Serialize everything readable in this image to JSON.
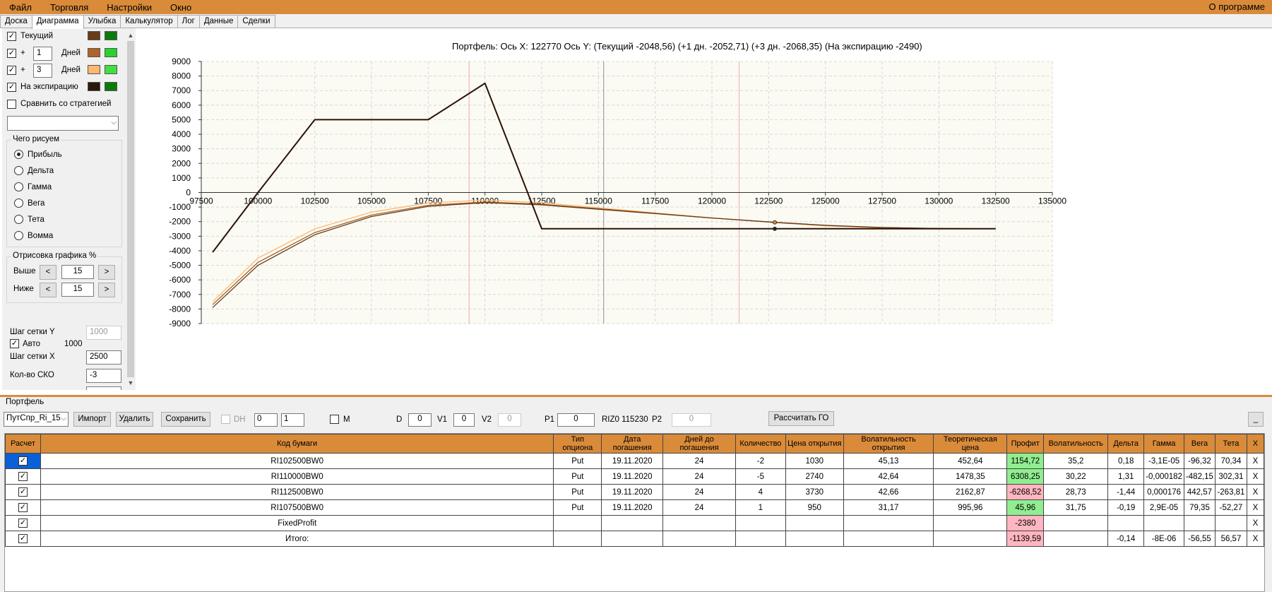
{
  "menu": {
    "items": [
      "Файл",
      "Торговля",
      "Настройки",
      "Окно"
    ],
    "about": "О программе"
  },
  "tabs": [
    "Доска",
    "Диаграмма",
    "Улыбка",
    "Калькулятор",
    "Лог",
    "Данные",
    "Сделки"
  ],
  "active_tab": "Диаграмма",
  "left": {
    "current_label": "Текущий",
    "plus": "+",
    "days_label": "Дней",
    "days1": "1",
    "days3": "3",
    "expiry_label": "На экспирацию",
    "compare_label": "Сравнить со стратегией",
    "what_group": "Чего рисуем",
    "radios": [
      "Прибыль",
      "Дельта",
      "Гамма",
      "Вега",
      "Тета",
      "Вомма"
    ],
    "draw_group": "Отрисовка графика %",
    "above_label": "Выше",
    "below_label": "Ниже",
    "above_val": "15",
    "below_val": "15",
    "btn_less": "<",
    "btn_more": ">",
    "grid_y_label": "Шаг сетки Y",
    "grid_y_val": "1000",
    "auto_label": "Авто",
    "auto_val": "1000",
    "grid_x_label": "Шаг сетки X",
    "grid_x_val": "2500",
    "sko_label": "Кол-во СКО",
    "sko_val": "-3",
    "colors": {
      "current": [
        "#6b3a1a",
        "#0a7a0a"
      ],
      "d1": [
        "#b0642c",
        "#2bd22b"
      ],
      "d3": [
        "#ffb870",
        "#40e040"
      ],
      "expiry": [
        "#2a1a0a",
        "#0a7a0a"
      ]
    }
  },
  "chart_title": "Портфель:  Ось X:  122770  Ось Y:   (Текущий -2048,56)   (+1 дн. -2052,71)   (+3 дн. -2068,35)   (На экспирацию -2490)",
  "chart_data": {
    "type": "line",
    "xlim": [
      97500,
      135000
    ],
    "ylim": [
      -9000,
      9000
    ],
    "xticks": [
      "97500",
      "100000",
      "102500",
      "105000",
      "107500",
      "110000",
      "112500",
      "115000",
      "117500",
      "120000",
      "122500",
      "125000",
      "127500",
      "130000",
      "132500",
      "135000"
    ],
    "yticks": [
      "9000",
      "8000",
      "7000",
      "6000",
      "5000",
      "4000",
      "3000",
      "2000",
      "1000",
      "0",
      "-1000",
      "-2000",
      "-3000",
      "-4000",
      "-5000",
      "-6000",
      "-7000",
      "-8000",
      "-9000"
    ],
    "vlines": [
      {
        "x": 109300,
        "color": "#f4b4b4"
      },
      {
        "x": 115230,
        "color": "#9aa0a8"
      },
      {
        "x": 121200,
        "color": "#f4b4b4"
      }
    ],
    "series": [
      {
        "key": "expiry",
        "color": "#2a1205",
        "width": 2,
        "points": [
          [
            98000,
            -4100
          ],
          [
            100000,
            0
          ],
          [
            102500,
            5000
          ],
          [
            107500,
            5000
          ],
          [
            110000,
            7500
          ],
          [
            112500,
            -2490
          ],
          [
            132500,
            -2490
          ]
        ]
      },
      {
        "key": "current",
        "color": "#6b3a1a",
        "width": 1.3,
        "points": [
          [
            98000,
            -7900
          ],
          [
            100000,
            -5000
          ],
          [
            102500,
            -2900
          ],
          [
            105000,
            -1650
          ],
          [
            107500,
            -950
          ],
          [
            110000,
            -700
          ],
          [
            112500,
            -850
          ],
          [
            115000,
            -1150
          ],
          [
            117500,
            -1450
          ],
          [
            120000,
            -1750
          ],
          [
            122770,
            -2048.56
          ],
          [
            125000,
            -2250
          ],
          [
            127500,
            -2400
          ],
          [
            130000,
            -2470
          ],
          [
            132500,
            -2490
          ]
        ]
      },
      {
        "key": "d1",
        "color": "#a0602a",
        "width": 1.3,
        "points": [
          [
            98000,
            -7700
          ],
          [
            100000,
            -4800
          ],
          [
            102500,
            -2750
          ],
          [
            105000,
            -1550
          ],
          [
            107500,
            -880
          ],
          [
            110000,
            -650
          ],
          [
            112500,
            -800
          ],
          [
            115000,
            -1110
          ],
          [
            117500,
            -1430
          ],
          [
            120000,
            -1750
          ],
          [
            122770,
            -2052.71
          ],
          [
            125000,
            -2260
          ],
          [
            127500,
            -2410
          ],
          [
            130000,
            -2475
          ],
          [
            132500,
            -2490
          ]
        ]
      },
      {
        "key": "d3",
        "color": "#ffb870",
        "width": 1.3,
        "points": [
          [
            98000,
            -7500
          ],
          [
            100000,
            -4500
          ],
          [
            102500,
            -2500
          ],
          [
            105000,
            -1350
          ],
          [
            107500,
            -720
          ],
          [
            110000,
            -520
          ],
          [
            112500,
            -700
          ],
          [
            115000,
            -1050
          ],
          [
            117500,
            -1400
          ],
          [
            120000,
            -1740
          ],
          [
            122770,
            -2068.35
          ],
          [
            125000,
            -2290
          ],
          [
            127500,
            -2430
          ],
          [
            130000,
            -2480
          ],
          [
            132500,
            -2490
          ]
        ]
      }
    ],
    "markers": [
      {
        "x": 122770,
        "y": -2048.56
      },
      {
        "x": 122770,
        "y": -2490
      }
    ]
  },
  "portfolio": {
    "label": "Портфель",
    "combo": "ПутСпр_Ri_15",
    "import": "Импорт",
    "delete": "Удалить",
    "save": "Сохранить",
    "dh": "DH",
    "spin1": "0",
    "spin2": "1",
    "m": "M",
    "d_label": "D",
    "d_val": "0",
    "v1_label": "V1",
    "v1_val": "0",
    "v2_label": "V2",
    "v2_val": "0",
    "p1_label": "P1",
    "p1_val": "0",
    "riz": "RIZ0 115230",
    "p2_label": "P2",
    "p2_val": "0",
    "calc_go": "Рассчитать ГО",
    "minimize": "_"
  },
  "table": {
    "headers": [
      "Расчет",
      "Код бумаги",
      "Тип опциона",
      "Дата погашения",
      "Дней до погашения",
      "Количество",
      "Цена открытия",
      "Волатильность открытия",
      "Теоретическая цена",
      "Профит",
      "Волатильность",
      "Дельта",
      "Гамма",
      "Вега",
      "Тета",
      "X"
    ],
    "rows": [
      [
        "RI102500BW0",
        "Put",
        "19.11.2020",
        "24",
        "-2",
        "1030",
        "45,13",
        "452,64",
        "1154,72",
        "35,2",
        "0,18",
        "-3,1E-05",
        "-96,32",
        "70,34",
        "X"
      ],
      [
        "RI110000BW0",
        "Put",
        "19.11.2020",
        "24",
        "-5",
        "2740",
        "42,64",
        "1478,35",
        "6308,25",
        "30,22",
        "1,31",
        "-0,000182",
        "-482,15",
        "302,31",
        "X"
      ],
      [
        "RI112500BW0",
        "Put",
        "19.11.2020",
        "24",
        "4",
        "3730",
        "42,66",
        "2162,87",
        "-6268,52",
        "28,73",
        "-1,44",
        "0,000176",
        "442,57",
        "-263,81",
        "X"
      ],
      [
        "RI107500BW0",
        "Put",
        "19.11.2020",
        "24",
        "1",
        "950",
        "31,17",
        "995,96",
        "45,96",
        "31,75",
        "-0,19",
        "2,9E-05",
        "79,35",
        "-52,27",
        "X"
      ],
      [
        "FixedProfit",
        "",
        "",
        "",
        "",
        "",
        "",
        "",
        "-2380",
        "",
        "",
        "",
        "",
        "",
        "X"
      ],
      [
        "Итого:",
        "",
        "",
        "",
        "",
        "",
        "",
        "",
        "-1139,59",
        "",
        "-0,14",
        "-8E-06",
        "-56,55",
        "56,57",
        "X"
      ]
    ],
    "profit_status": [
      "green",
      "green",
      "red",
      "green",
      "red",
      "red"
    ]
  }
}
